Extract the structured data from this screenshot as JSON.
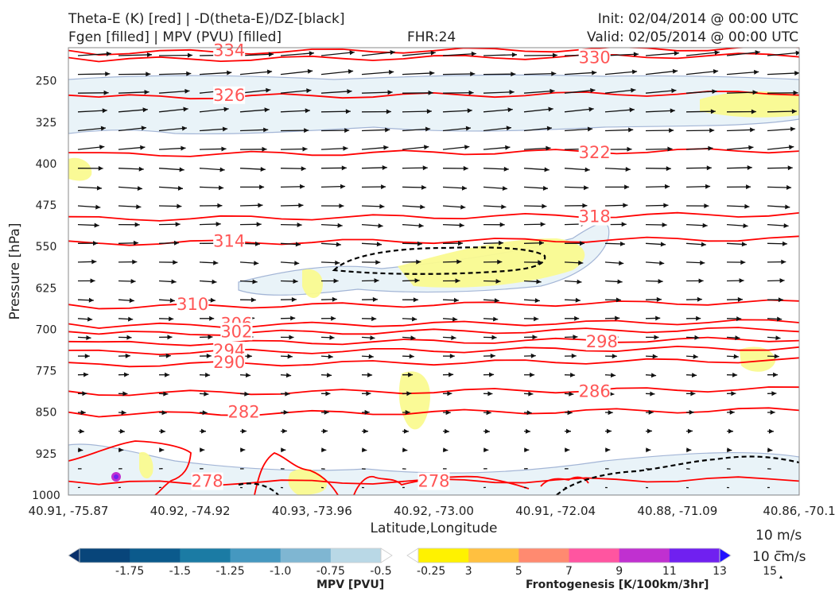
{
  "header": {
    "title_left_1": "Theta-E (K) [red] | -D(theta-E)/DZ-[black]",
    "title_left_2": "Fgen [filled] | MPV (PVU) [filled]",
    "fhr": "FHR:24",
    "init": "Init: 02/04/2014 @ 00:00 UTC",
    "valid": "Valid: 02/05/2014 @ 00:00 UTC"
  },
  "chart_data": {
    "type": "contour",
    "xlabel": "Latitude,Longitude",
    "ylabel": "Pressure [hPa]",
    "x_ticks": [
      "40.91, -75.87",
      "40.92, -74.92",
      "40.93, -73.96",
      "40.92, -73.00",
      "40.91, -72.04",
      "40.88, -71.09",
      "40.86, -70.1"
    ],
    "y_ticks": [
      250,
      325,
      400,
      475,
      550,
      625,
      700,
      775,
      850,
      925,
      1000
    ],
    "ylim": [
      1000,
      190
    ],
    "theta_e_contours": [
      {
        "label": "334",
        "y": 195,
        "label_x": 0.22
      },
      {
        "label": "330",
        "y": 208,
        "label_x": 0.72
      },
      {
        "label": "326",
        "y": 276,
        "label_x": 0.22
      },
      {
        "label": "322",
        "y": 380,
        "label_x": 0.72
      },
      {
        "label": "318",
        "y": 496,
        "label_x": 0.72
      },
      {
        "label": "314",
        "y": 540,
        "label_x": 0.22
      },
      {
        "label": "310",
        "y": 655,
        "label_x": 0.17
      },
      {
        "label": "306",
        "y": 690,
        "label_x": 0.23
      },
      {
        "label": "302",
        "y": 704,
        "label_x": 0.23
      },
      {
        "label": "298",
        "y": 722,
        "label_x": 0.73
      },
      {
        "label": "294",
        "y": 738,
        "label_x": 0.22
      },
      {
        "label": "290",
        "y": 760,
        "label_x": 0.22
      },
      {
        "label": "286",
        "y": 812,
        "label_x": 0.72
      },
      {
        "label": "282",
        "y": 850,
        "label_x": 0.24
      },
      {
        "label": "278",
        "y": 975,
        "label_x": 0.19
      },
      {
        "label": "278",
        "y": 975,
        "label_x": 0.5
      }
    ],
    "colorbars": [
      {
        "title": "MPV [PVU]",
        "ticks": [
          "-1.75",
          "-1.5",
          "-1.25",
          "-1.0",
          "-0.75",
          "-0.5",
          "-0.25"
        ],
        "colors": [
          "#08306b",
          "#08457a",
          "#0b5a8c",
          "#1b7ba4",
          "#4598c0",
          "#7fb6d2",
          "#b9d8e6",
          "#ffffff"
        ]
      },
      {
        "title": "Frontogenesis [K/100km/3hr]",
        "ticks": [
          "3",
          "5",
          "7",
          "9",
          "11",
          "13",
          "15"
        ],
        "colors": [
          "#ffffff",
          "#fff200",
          "#ffc040",
          "#ff8a70",
          "#ff55a0",
          "#c030d0",
          "#7020f0",
          "#2010ff"
        ]
      }
    ],
    "reference_vectors": [
      "10 m/s",
      "10 cm/s"
    ],
    "colors": {
      "theta_e": "#ff0000",
      "label": "#ff5555",
      "mpv_outline": "#9fb2d4",
      "mpv_fill": "#e8f3f8",
      "fgen_fill": "#fafa90",
      "dtheta": "#000000"
    }
  }
}
